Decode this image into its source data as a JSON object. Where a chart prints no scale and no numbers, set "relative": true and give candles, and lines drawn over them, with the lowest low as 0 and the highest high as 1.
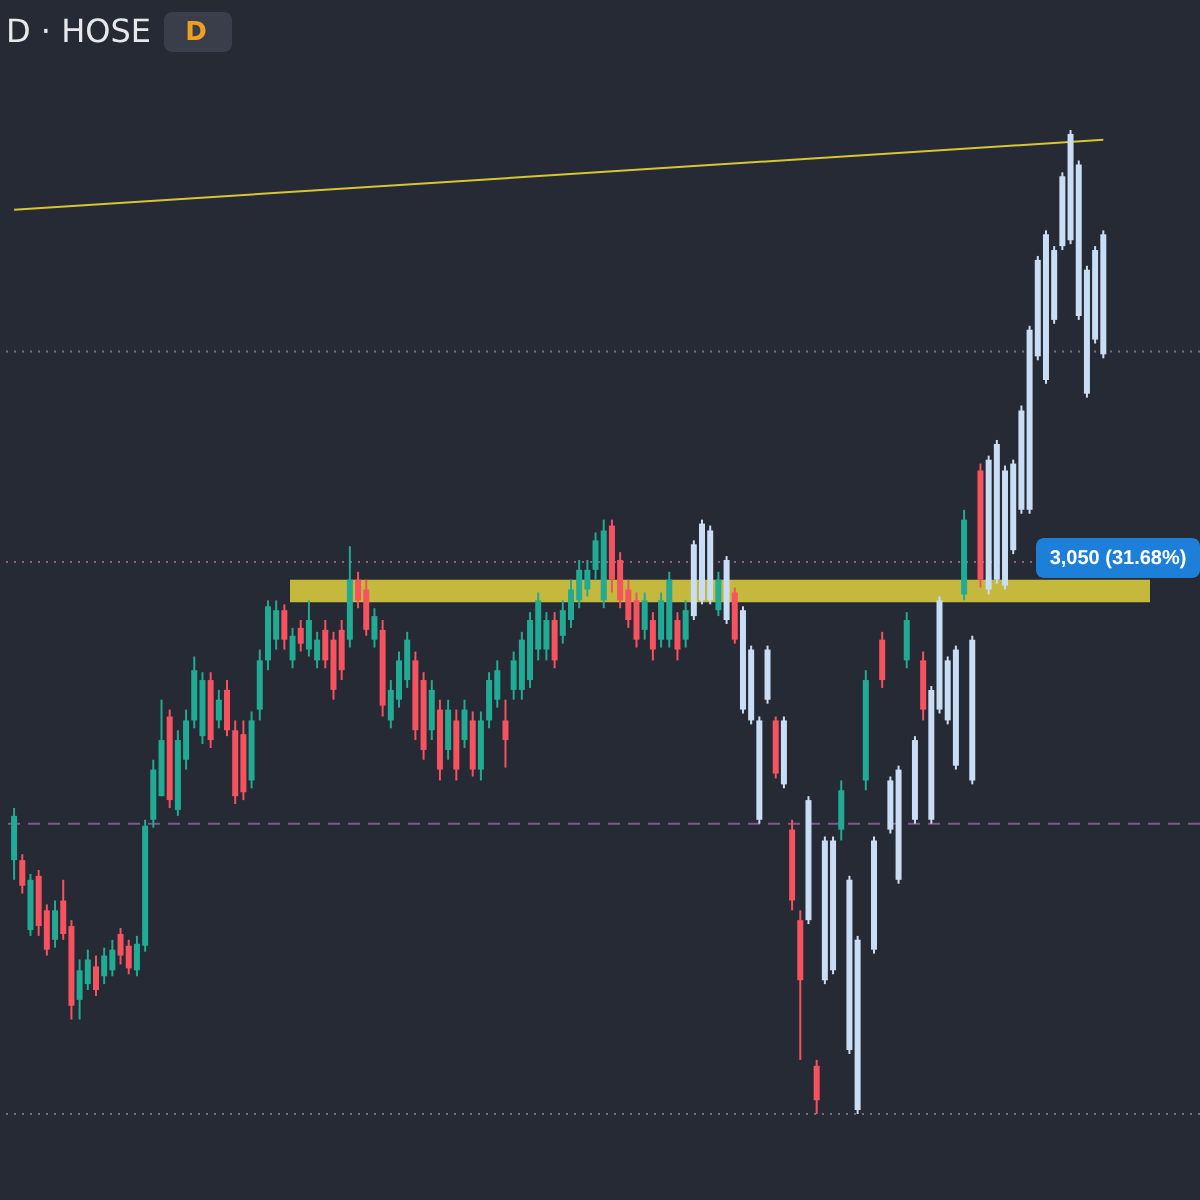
{
  "chart_data": {
    "type": "candlestick",
    "relative": true,
    "title": "D · HOSE",
    "annotations": [
      "D",
      "3,050 (31.68%)"
    ],
    "categories": [
      null,
      null,
      null,
      null,
      null,
      null,
      null,
      null,
      null,
      null,
      null,
      null,
      null,
      null,
      null,
      null,
      null,
      null,
      null,
      null,
      null,
      null,
      null,
      null,
      null,
      null,
      null,
      null,
      null,
      null,
      null,
      null,
      null,
      null,
      null,
      null,
      null,
      null,
      null,
      null,
      null,
      null,
      null,
      null,
      null,
      null,
      null,
      null,
      null,
      null,
      null,
      null,
      null,
      null,
      null,
      null,
      null,
      null,
      null,
      null,
      null,
      null,
      null,
      null,
      null,
      null,
      null,
      null,
      null,
      null,
      null,
      null,
      null,
      null,
      null,
      null,
      null,
      null,
      null,
      null,
      null,
      null,
      null,
      null,
      null,
      null,
      null,
      null,
      null,
      null,
      null,
      null,
      null,
      null,
      null,
      null,
      null,
      null,
      null,
      null,
      null,
      null,
      null,
      null,
      null,
      null,
      null,
      null,
      null,
      null,
      null,
      null,
      null,
      null,
      null,
      null,
      null,
      null,
      null,
      null,
      null,
      null,
      null,
      null,
      null,
      null,
      null,
      null,
      null,
      null,
      null,
      null,
      null,
      null
    ],
    "ohlc": [
      [
        0.258,
        0.311,
        0.238,
        0.303
      ],
      [
        0.258,
        0.264,
        0.224,
        0.232
      ],
      [
        0.187,
        0.244,
        0.181,
        0.238
      ],
      [
        0.242,
        0.248,
        0.181,
        0.191
      ],
      [
        0.207,
        0.213,
        0.161,
        0.167
      ],
      [
        0.177,
        0.217,
        0.169,
        0.207
      ],
      [
        0.217,
        0.238,
        0.177,
        0.183
      ],
      [
        0.191,
        0.197,
        0.096,
        0.11
      ],
      [
        0.116,
        0.157,
        0.096,
        0.146
      ],
      [
        0.132,
        0.167,
        0.126,
        0.157
      ],
      [
        0.15,
        0.161,
        0.12,
        0.126
      ],
      [
        0.14,
        0.169,
        0.132,
        0.161
      ],
      [
        0.146,
        0.177,
        0.14,
        0.167
      ],
      [
        0.183,
        0.189,
        0.152,
        0.161
      ],
      [
        0.171,
        0.177,
        0.142,
        0.148
      ],
      [
        0.146,
        0.181,
        0.14,
        0.173
      ],
      [
        0.171,
        0.299,
        0.165,
        0.293
      ],
      [
        0.299,
        0.36,
        0.291,
        0.35
      ],
      [
        0.323,
        0.421,
        0.323,
        0.38
      ],
      [
        0.404,
        0.411,
        0.311,
        0.319
      ],
      [
        0.309,
        0.39,
        0.303,
        0.38
      ],
      [
        0.36,
        0.411,
        0.35,
        0.4
      ],
      [
        0.4,
        0.465,
        0.392,
        0.451
      ],
      [
        0.384,
        0.449,
        0.376,
        0.441
      ],
      [
        0.441,
        0.449,
        0.372,
        0.38
      ],
      [
        0.4,
        0.431,
        0.392,
        0.421
      ],
      [
        0.431,
        0.441,
        0.384,
        0.39
      ],
      [
        0.39,
        0.4,
        0.315,
        0.323
      ],
      [
        0.386,
        0.4,
        0.319,
        0.327
      ],
      [
        0.339,
        0.409,
        0.331,
        0.4
      ],
      [
        0.411,
        0.472,
        0.4,
        0.461
      ],
      [
        0.461,
        0.522,
        0.451,
        0.516
      ],
      [
        0.482,
        0.522,
        0.472,
        0.512
      ],
      [
        0.512,
        0.518,
        0.472,
        0.482
      ],
      [
        0.461,
        0.494,
        0.453,
        0.486
      ],
      [
        0.494,
        0.502,
        0.47,
        0.478
      ],
      [
        0.472,
        0.522,
        0.465,
        0.502
      ],
      [
        0.461,
        0.49,
        0.453,
        0.482
      ],
      [
        0.492,
        0.502,
        0.453,
        0.461
      ],
      [
        0.482,
        0.49,
        0.421,
        0.431
      ],
      [
        0.492,
        0.502,
        0.441,
        0.451
      ],
      [
        0.482,
        0.577,
        0.474,
        0.543
      ],
      [
        0.543,
        0.551,
        0.514,
        0.522
      ],
      [
        0.533,
        0.543,
        0.486,
        0.492
      ],
      [
        0.482,
        0.514,
        0.474,
        0.506
      ],
      [
        0.492,
        0.502,
        0.404,
        0.415
      ],
      [
        0.4,
        0.441,
        0.392,
        0.431
      ],
      [
        0.421,
        0.47,
        0.413,
        0.461
      ],
      [
        0.441,
        0.49,
        0.433,
        0.482
      ],
      [
        0.461,
        0.47,
        0.38,
        0.39
      ],
      [
        0.441,
        0.449,
        0.36,
        0.37
      ],
      [
        0.39,
        0.441,
        0.38,
        0.431
      ],
      [
        0.411,
        0.421,
        0.339,
        0.35
      ],
      [
        0.37,
        0.421,
        0.36,
        0.411
      ],
      [
        0.4,
        0.411,
        0.339,
        0.35
      ],
      [
        0.38,
        0.421,
        0.372,
        0.411
      ],
      [
        0.4,
        0.409,
        0.343,
        0.35
      ],
      [
        0.35,
        0.409,
        0.339,
        0.4
      ],
      [
        0.4,
        0.449,
        0.392,
        0.441
      ],
      [
        0.421,
        0.461,
        0.413,
        0.451
      ],
      [
        0.4,
        0.421,
        0.352,
        0.38
      ],
      [
        0.431,
        0.47,
        0.421,
        0.461
      ],
      [
        0.431,
        0.49,
        0.421,
        0.482
      ],
      [
        0.441,
        0.51,
        0.433,
        0.502
      ],
      [
        0.472,
        0.53,
        0.461,
        0.522
      ],
      [
        0.472,
        0.51,
        0.461,
        0.502
      ],
      [
        0.502,
        0.51,
        0.453,
        0.461
      ],
      [
        0.486,
        0.522,
        0.478,
        0.512
      ],
      [
        0.502,
        0.543,
        0.494,
        0.533
      ],
      [
        0.522,
        0.563,
        0.514,
        0.553
      ],
      [
        0.533,
        0.563,
        0.526,
        0.553
      ],
      [
        0.553,
        0.591,
        0.543,
        0.583
      ],
      [
        0.522,
        0.604,
        0.514,
        0.593
      ],
      [
        0.598,
        0.604,
        0.53,
        0.543
      ],
      [
        0.563,
        0.571,
        0.514,
        0.522
      ],
      [
        0.533,
        0.543,
        0.494,
        0.502
      ],
      [
        0.522,
        0.53,
        0.474,
        0.482
      ],
      [
        0.492,
        0.53,
        0.482,
        0.522
      ],
      [
        0.502,
        0.51,
        0.461,
        0.472
      ],
      [
        0.482,
        0.53,
        0.474,
        0.522
      ],
      [
        0.482,
        0.551,
        0.474,
        0.543
      ],
      [
        0.502,
        0.51,
        0.461,
        0.472
      ],
      [
        0.482,
        0.522,
        0.474,
        0.512
      ],
      [
        0.506,
        0.583,
        0.502,
        0.579
      ],
      [
        0.522,
        0.604,
        0.518,
        0.6
      ],
      [
        0.522,
        0.598,
        0.518,
        0.593
      ],
      [
        0.512,
        0.551,
        0.506,
        0.543
      ],
      [
        0.502,
        0.567,
        0.498,
        0.563
      ],
      [
        0.53,
        0.535,
        0.478,
        0.482
      ],
      [
        0.512,
        0.516,
        0.407,
        0.411
      ],
      [
        0.472,
        0.476,
        0.396,
        0.4
      ],
      [
        0.4,
        0.404,
        0.295,
        0.299
      ],
      [
        0.472,
        0.476,
        0.417,
        0.421
      ],
      [
        0.4,
        0.404,
        0.341,
        0.346
      ],
      [
        0.4,
        0.404,
        0.331,
        0.335
      ],
      [
        0.289,
        0.299,
        0.207,
        0.217
      ],
      [
        0.197,
        0.207,
        0.055,
        0.136
      ],
      [
        0.319,
        0.323,
        0.193,
        0.197
      ],
      [
        0.049,
        0.055,
        0.0,
        0.014
      ],
      [
        0.278,
        0.282,
        0.132,
        0.136
      ],
      [
        0.146,
        0.282,
        0.142,
        0.278
      ],
      [
        0.289,
        0.339,
        0.278,
        0.329
      ],
      [
        0.238,
        0.242,
        0.061,
        0.065
      ],
      [
        0.177,
        0.181,
        0.0,
        0.004
      ],
      [
        0.339,
        0.451,
        0.329,
        0.441
      ],
      [
        0.167,
        0.282,
        0.163,
        0.278
      ],
      [
        0.482,
        0.49,
        0.433,
        0.441
      ],
      [
        0.289,
        0.343,
        0.285,
        0.339
      ],
      [
        0.238,
        0.354,
        0.234,
        0.35
      ],
      [
        0.461,
        0.51,
        0.453,
        0.502
      ],
      [
        0.299,
        0.384,
        0.295,
        0.38
      ],
      [
        0.461,
        0.47,
        0.4,
        0.411
      ],
      [
        0.299,
        0.435,
        0.295,
        0.431
      ],
      [
        0.411,
        0.526,
        0.407,
        0.522
      ],
      [
        0.461,
        0.465,
        0.396,
        0.4
      ],
      [
        0.354,
        0.476,
        0.35,
        0.472
      ],
      [
        0.528,
        0.614,
        0.522,
        0.604
      ],
      [
        0.482,
        0.486,
        0.335,
        0.339
      ],
      [
        0.654,
        0.661,
        0.535,
        0.543
      ],
      [
        0.533,
        0.669,
        0.528,
        0.665
      ],
      [
        0.543,
        0.685,
        0.539,
        0.681
      ],
      [
        0.654,
        0.659,
        0.533,
        0.537
      ],
      [
        0.573,
        0.665,
        0.569,
        0.661
      ],
      [
        0.614,
        0.72,
        0.61,
        0.715
      ],
      [
        0.614,
        0.801,
        0.61,
        0.797
      ],
      [
        0.77,
        0.872,
        0.766,
        0.868
      ],
      [
        0.746,
        0.898,
        0.742,
        0.894
      ],
      [
        0.807,
        0.882,
        0.803,
        0.878
      ],
      [
        0.882,
        0.957,
        0.878,
        0.953
      ],
      [
        0.888,
        1.0,
        0.884,
        0.996
      ],
      [
        0.965,
        0.969,
        0.807,
        0.811
      ],
      [
        0.858,
        0.862,
        0.728,
        0.732
      ],
      [
        0.787,
        0.882,
        0.783,
        0.878
      ],
      [
        0.894,
        0.898,
        0.768,
        0.772
      ]
    ],
    "colors": [
      "#22ab94",
      "#f7525f",
      "#22ab94",
      "#f7525f",
      "#f7525f",
      "#22ab94",
      "#f7525f",
      "#f7525f",
      "#22ab94",
      "#22ab94",
      "#f7525f",
      "#22ab94",
      "#22ab94",
      "#f7525f",
      "#f7525f",
      "#22ab94",
      "#22ab94",
      "#22ab94",
      "#22ab94",
      "#f7525f",
      "#22ab94",
      "#22ab94",
      "#22ab94",
      "#22ab94",
      "#f7525f",
      "#22ab94",
      "#f7525f",
      "#f7525f",
      "#f7525f",
      "#22ab94",
      "#22ab94",
      "#22ab94",
      "#22ab94",
      "#f7525f",
      "#22ab94",
      "#f7525f",
      "#22ab94",
      "#22ab94",
      "#f7525f",
      "#f7525f",
      "#f7525f",
      "#22ab94",
      "#f7525f",
      "#f7525f",
      "#22ab94",
      "#f7525f",
      "#22ab94",
      "#22ab94",
      "#22ab94",
      "#f7525f",
      "#f7525f",
      "#22ab94",
      "#f7525f",
      "#22ab94",
      "#f7525f",
      "#22ab94",
      "#f7525f",
      "#22ab94",
      "#22ab94",
      "#22ab94",
      "#f7525f",
      "#22ab94",
      "#22ab94",
      "#22ab94",
      "#22ab94",
      "#22ab94",
      "#f7525f",
      "#22ab94",
      "#22ab94",
      "#22ab94",
      "#22ab94",
      "#22ab94",
      "#22ab94",
      "#f7525f",
      "#f7525f",
      "#f7525f",
      "#f7525f",
      "#22ab94",
      "#f7525f",
      "#22ab94",
      "#22ab94",
      "#f7525f",
      "#22ab94",
      "#c9def5",
      "#c9def5",
      "#c9def5",
      "#22ab94",
      "#c9def5",
      "#f7525f",
      "#c9def5",
      "#c9def5",
      "#c9def5",
      "#c9def5",
      "#f7525f",
      "#c9def5",
      "#f7525f",
      "#f7525f",
      "#c9def5",
      "#f7525f",
      "#c9def5",
      "#c9def5",
      "#22ab94",
      "#c9def5",
      "#c9def5",
      "#22ab94",
      "#c9def5",
      "#f7525f",
      "#c9def5",
      "#c9def5",
      "#22ab94",
      "#c9def5",
      "#f7525f",
      "#c9def5",
      "#c9def5",
      "#c9def5",
      "#c9def5",
      "#22ab94",
      "#c9def5",
      "#f7525f",
      "#c9def5",
      "#c9def5",
      "#c9def5",
      "#c9def5",
      "#c9def5",
      "#c9def5",
      "#c9def5",
      "#c9def5",
      "#c9def5",
      "#c9def5",
      "#c9def5",
      "#c9def5",
      "#c9def5",
      "#c9def5",
      "#c9def5"
    ],
    "series": [
      {
        "type": "line",
        "color": "#d9c531",
        "values": [
          0.919,
          null,
          null,
          null,
          null,
          null,
          null,
          null,
          null,
          null,
          null,
          null,
          null,
          null,
          null,
          null,
          null,
          null,
          null,
          null,
          null,
          null,
          null,
          null,
          null,
          null,
          null,
          null,
          null,
          null,
          null,
          null,
          null,
          null,
          null,
          null,
          null,
          null,
          null,
          null,
          null,
          null,
          null,
          null,
          null,
          null,
          null,
          null,
          null,
          null,
          null,
          null,
          null,
          null,
          null,
          null,
          null,
          null,
          null,
          null,
          null,
          null,
          null,
          null,
          null,
          null,
          null,
          null,
          null,
          null,
          null,
          null,
          null,
          null,
          null,
          null,
          null,
          null,
          null,
          null,
          null,
          null,
          null,
          null,
          null,
          null,
          null,
          null,
          null,
          null,
          null,
          null,
          null,
          null,
          null,
          null,
          null,
          null,
          null,
          null,
          null,
          null,
          null,
          null,
          null,
          null,
          null,
          null,
          null,
          null,
          null,
          null,
          null,
          null,
          null,
          null,
          null,
          null,
          null,
          null,
          null,
          null,
          null,
          null,
          null,
          null,
          null,
          null,
          null,
          null,
          null,
          null,
          null,
          0.99
        ]
      }
    ],
    "bands": [
      {
        "axis": "y",
        "from": 0.52,
        "to": 0.543,
        "color": "#d6c83e"
      }
    ],
    "ref_lines": [
      {
        "axis": "y",
        "value": 0.775,
        "color": "#6e7280",
        "line_style": "dotted"
      },
      {
        "axis": "y",
        "value": 0.561,
        "color": "#8a5f7e",
        "line_style": "dotted"
      },
      {
        "axis": "y",
        "value": 0.295,
        "color": "#7b5a8c",
        "line_style": "dashed"
      },
      {
        "axis": "y",
        "value": 0.0,
        "color": "#6e7280",
        "line_style": "dotted"
      }
    ]
  }
}
